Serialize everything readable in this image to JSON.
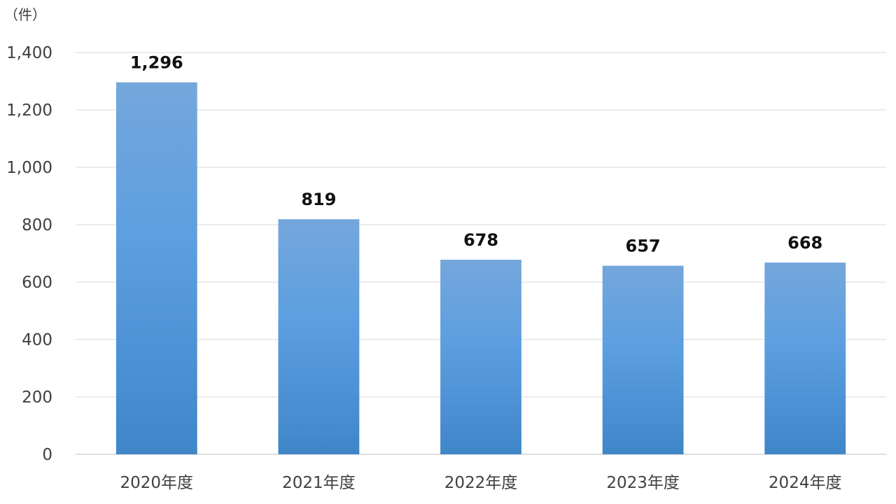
{
  "chart_data": {
    "type": "bar",
    "unit_label": "（件）",
    "categories": [
      "2020年度",
      "2021年度",
      "2022年度",
      "2023年度",
      "2024年度"
    ],
    "values": [
      1296,
      819,
      678,
      657,
      668
    ],
    "value_labels": [
      "1,296",
      "819",
      "678",
      "657",
      "668"
    ],
    "y_ticks": [
      0,
      200,
      400,
      600,
      800,
      1000,
      1200,
      1400
    ],
    "y_tick_labels": [
      "0",
      "200",
      "400",
      "600",
      "800",
      "1,000",
      "1,200",
      "1,400"
    ],
    "ylim": [
      0,
      1400
    ],
    "grid": true,
    "legend": "none",
    "colors": {
      "bar_top": "#74a7dc",
      "bar_mid": "#5b9ee0",
      "bar_bottom": "#3f86c8"
    }
  }
}
